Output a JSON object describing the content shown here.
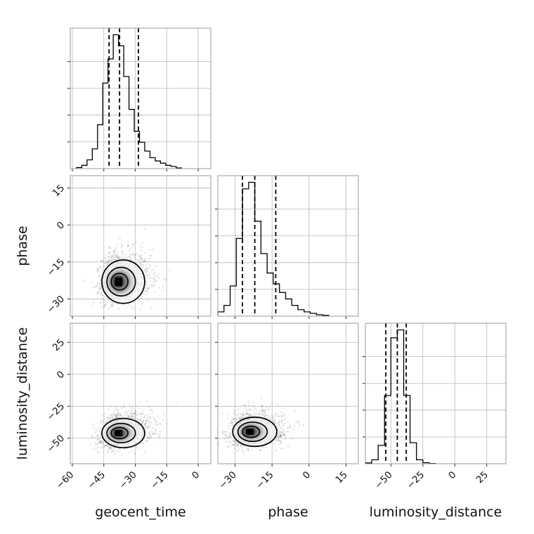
{
  "chart_data": {
    "type": "corner",
    "parameters": [
      "geocent_time",
      "phase",
      "luminosity_distance"
    ],
    "axes": {
      "geocent_time": {
        "range": [
          -61,
          6
        ],
        "ticks": [
          -60,
          -45,
          -30,
          -15,
          0
        ],
        "tick_labels": [
          "−60",
          "−45",
          "−30",
          "−15",
          "0"
        ]
      },
      "phase": {
        "range": [
          -37,
          20
        ],
        "ticks": [
          -30,
          -15,
          0,
          15
        ],
        "tick_labels": [
          "−30",
          "−15",
          "0",
          "15"
        ]
      },
      "luminosity_distance": {
        "range": [
          -70,
          40
        ],
        "ticks": [
          -50,
          -25,
          0,
          25
        ],
        "tick_labels": [
          "−50",
          "−25",
          "0",
          "25"
        ]
      }
    },
    "marginals": [
      {
        "parameter": "geocent_time",
        "bin_edges": [
          -58,
          -55.5,
          -53,
          -50.5,
          -48,
          -45.5,
          -43,
          -40.5,
          -38,
          -35.5,
          -33,
          -30.5,
          -28,
          -25.5,
          -23,
          -20.5,
          -18,
          -15.5,
          -13,
          -10.5,
          -8
        ],
        "counts": [
          0.5,
          1.5,
          4,
          9,
          20,
          39,
          50,
          61,
          56,
          42,
          27,
          17,
          12,
          8,
          5,
          3.5,
          2.5,
          1.5,
          1,
          0.3
        ],
        "quantiles": [
          -42.5,
          -37.5,
          -28.5
        ]
      },
      {
        "parameter": "phase",
        "bin_edges": [
          -37,
          -34.5,
          -32,
          -29.5,
          -27,
          -24.5,
          -22,
          -19.5,
          -17,
          -14.5,
          -12,
          -9.5,
          -7,
          -4.5,
          -2,
          0.5,
          3,
          5.5,
          8
        ],
        "counts": [
          2,
          5,
          14,
          36,
          59,
          62,
          44,
          29,
          20,
          15,
          11,
          8,
          5,
          3,
          2,
          1.3,
          0.7,
          0.4
        ],
        "quantiles": [
          -27,
          -22,
          -13.5
        ]
      },
      {
        "parameter": "luminosity_distance",
        "bin_edges": [
          -70,
          -65,
          -60,
          -55,
          -50,
          -45,
          -40,
          -35,
          -30,
          -25,
          -20,
          -15
        ],
        "counts": [
          0.3,
          1.5,
          7,
          26,
          48,
          51,
          26,
          8,
          1.5,
          0.4,
          0.1
        ],
        "quantiles": [
          -54,
          -45,
          -38
        ]
      }
    ],
    "joint_peaks": {
      "phase_vs_geocent_time": [
        -38,
        -23
      ],
      "luminosity_distance_vs_geocent_time": [
        -38,
        -46
      ],
      "luminosity_distance_vs_phase": [
        -24,
        -45
      ]
    },
    "grid": true
  }
}
